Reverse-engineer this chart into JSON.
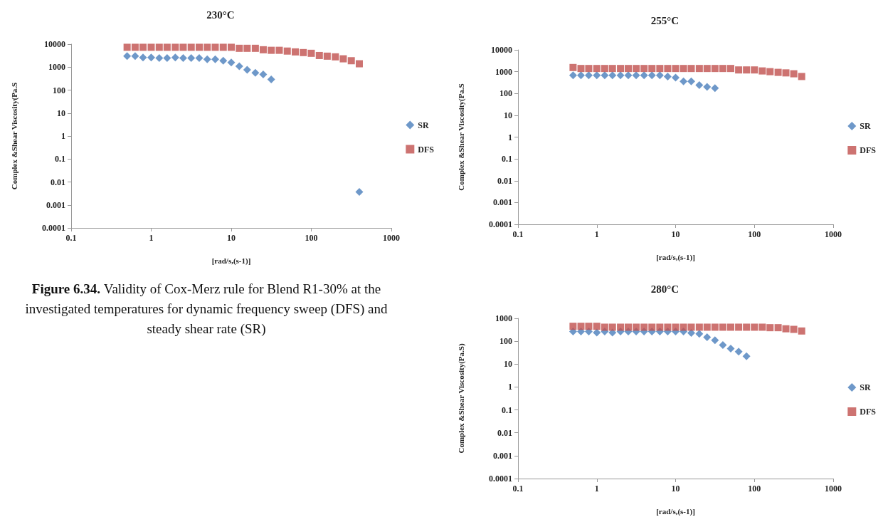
{
  "chart_data": [
    {
      "type": "scatter",
      "title": "230°C",
      "xlabel": "[rad/s,(s-1)]",
      "ylabel": "Complex &Shear Viscosity(Pa.S",
      "log": "xy",
      "grid": false,
      "legend": "right",
      "xlim": [
        0.1,
        1000
      ],
      "xticks": [
        0.1,
        1,
        10,
        100,
        1000
      ],
      "ylim": [
        0.0001,
        10000
      ],
      "yticks": [
        0.0001,
        0.001,
        0.01,
        0.1,
        1,
        10,
        100,
        1000,
        10000
      ],
      "annotations": [
        "Figure 6.34.",
        "Validity of Cox-Merz rule for Blend R1-30% at the investigated temperatures for dynamic frequency sweep (DFS) and steady shear rate (SR)"
      ],
      "series": [
        {
          "name": "SR",
          "color": "#4a7ebb",
          "marker": "diamond",
          "x": [
            0.5,
            0.63,
            0.79,
            1,
            1.26,
            1.58,
            2,
            2.51,
            3.16,
            3.98,
            5.01,
            6.31,
            7.94,
            10,
            12.6,
            15.8,
            20,
            25.1,
            31.6,
            398
          ],
          "values": [
            3000,
            3000,
            2600,
            2600,
            2500,
            2500,
            2600,
            2500,
            2500,
            2500,
            2200,
            2200,
            1900,
            1600,
            1100,
            770,
            560,
            480,
            290,
            0.0037
          ]
        },
        {
          "name": "DFS",
          "color": "#c0504d",
          "marker": "square",
          "x": [
            0.5,
            0.63,
            0.79,
            1,
            1.26,
            1.58,
            2,
            2.51,
            3.16,
            3.98,
            5.01,
            6.31,
            7.94,
            10,
            12.6,
            15.8,
            20,
            25.1,
            31.6,
            39.8,
            50.1,
            63.1,
            79.4,
            100,
            126,
            158,
            200,
            251,
            316,
            398
          ],
          "values": [
            7300,
            7300,
            7300,
            7300,
            7300,
            7300,
            7300,
            7300,
            7300,
            7300,
            7300,
            7300,
            7300,
            7300,
            6600,
            6600,
            6600,
            5700,
            5400,
            5400,
            5000,
            4600,
            4300,
            4000,
            3200,
            3000,
            2800,
            2300,
            1900,
            1400
          ]
        }
      ]
    },
    {
      "type": "scatter",
      "title": "255°C",
      "xlabel": "[rad/s,(s-1)]",
      "ylabel": "Complex &Shear Viscosity(Pa.S",
      "log": "xy",
      "grid": false,
      "legend": "right",
      "xlim": [
        0.1,
        1000
      ],
      "xticks": [
        0.1,
        1,
        10,
        100,
        1000
      ],
      "ylim": [
        0.0001,
        10000
      ],
      "yticks": [
        0.0001,
        0.001,
        0.01,
        0.1,
        1,
        10,
        100,
        1000,
        10000
      ],
      "series": [
        {
          "name": "SR",
          "color": "#4a7ebb",
          "marker": "diamond",
          "x": [
            0.5,
            0.63,
            0.79,
            1,
            1.26,
            1.58,
            2,
            2.51,
            3.16,
            3.98,
            5.01,
            6.31,
            7.94,
            10,
            12.6,
            15.8,
            20,
            25.1,
            31.6
          ],
          "values": [
            680,
            680,
            680,
            680,
            680,
            680,
            680,
            680,
            680,
            680,
            680,
            680,
            600,
            530,
            360,
            360,
            240,
            200,
            175
          ]
        },
        {
          "name": "DFS",
          "color": "#c0504d",
          "marker": "square",
          "x": [
            0.5,
            0.63,
            0.79,
            1,
            1.26,
            1.58,
            2,
            2.51,
            3.16,
            3.98,
            5.01,
            6.31,
            7.94,
            10,
            12.6,
            15.8,
            20,
            25.1,
            31.6,
            39.8,
            50.1,
            63.1,
            79.4,
            100,
            126,
            158,
            200,
            251,
            316,
            398
          ],
          "values": [
            1550,
            1400,
            1400,
            1400,
            1400,
            1400,
            1400,
            1400,
            1400,
            1400,
            1400,
            1400,
            1400,
            1400,
            1400,
            1400,
            1400,
            1400,
            1400,
            1400,
            1400,
            1200,
            1200,
            1200,
            1080,
            1000,
            930,
            880,
            800,
            600
          ]
        }
      ]
    },
    {
      "type": "scatter",
      "title": "280°C",
      "xlabel": "[rad/s,(s-1)]",
      "ylabel": "Complex &Shear Viscosity(Pa.S)",
      "log": "xy",
      "grid": false,
      "legend": "right",
      "xlim": [
        0.1,
        1000
      ],
      "xticks": [
        0.1,
        1,
        10,
        100,
        1000
      ],
      "ylim": [
        0.0001,
        1000
      ],
      "yticks": [
        0.0001,
        0.001,
        0.01,
        0.1,
        1,
        10,
        100,
        1000
      ],
      "series": [
        {
          "name": "SR",
          "color": "#4a7ebb",
          "marker": "diamond",
          "x": [
            0.5,
            0.63,
            0.79,
            1,
            1.26,
            1.58,
            2,
            2.51,
            3.16,
            3.98,
            5.01,
            6.31,
            7.94,
            10,
            12.6,
            15.8,
            20,
            25.1,
            31.6,
            39.8,
            50.1,
            63.1,
            79.4
          ],
          "values": [
            265,
            265,
            265,
            240,
            265,
            240,
            265,
            265,
            265,
            265,
            265,
            265,
            265,
            265,
            265,
            230,
            210,
            150,
            110,
            68,
            48,
            35,
            22
          ]
        },
        {
          "name": "DFS",
          "color": "#c0504d",
          "marker": "square",
          "x": [
            0.5,
            0.63,
            0.79,
            1,
            1.26,
            1.58,
            2,
            2.51,
            3.16,
            3.98,
            5.01,
            6.31,
            7.94,
            10,
            12.6,
            15.8,
            20,
            25.1,
            31.6,
            39.8,
            50.1,
            63.1,
            79.4,
            100,
            126,
            158,
            200,
            251,
            316,
            398
          ],
          "values": [
            450,
            450,
            450,
            450,
            410,
            410,
            410,
            410,
            410,
            410,
            410,
            410,
            410,
            410,
            410,
            410,
            410,
            410,
            410,
            410,
            410,
            410,
            410,
            410,
            410,
            390,
            390,
            350,
            330,
            280
          ]
        }
      ]
    }
  ]
}
